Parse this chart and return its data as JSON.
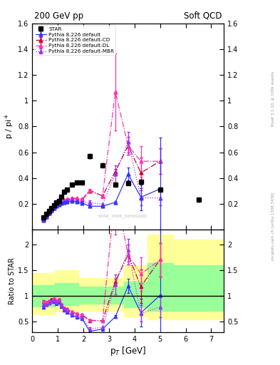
{
  "title_left": "200 GeV pp",
  "title_right": "Soft QCD",
  "ylabel_top": "p / pi$^{+}$",
  "ylabel_bottom": "Ratio to STAR",
  "xlabel": "p$_{T}$ [GeV]",
  "right_label_top": "Rivet 3.1.10, ≥ 100k events",
  "right_label_bottom": "mcplots.cern.ch [arXiv:1306.3436]",
  "watermark": "STAR_2006_S6500200",
  "star_pt": [
    0.45,
    0.55,
    0.65,
    0.75,
    0.85,
    0.95,
    1.05,
    1.15,
    1.25,
    1.35,
    1.55,
    1.75,
    1.95,
    2.25,
    2.75,
    3.25,
    3.75,
    4.25,
    5.0,
    6.5
  ],
  "star_val": [
    0.09,
    0.12,
    0.145,
    0.165,
    0.185,
    0.21,
    0.22,
    0.255,
    0.29,
    0.31,
    0.35,
    0.365,
    0.365,
    0.57,
    0.5,
    0.35,
    0.36,
    0.37,
    0.31,
    0.23
  ],
  "star_err": [
    0.005,
    0.005,
    0.005,
    0.005,
    0.005,
    0.005,
    0.005,
    0.005,
    0.005,
    0.005,
    0.01,
    0.01,
    0.01,
    0.02,
    0.02,
    0.02,
    0.02,
    0.02,
    0.02,
    0.02
  ],
  "default_pt": [
    0.45,
    0.55,
    0.65,
    0.75,
    0.85,
    0.95,
    1.05,
    1.15,
    1.25,
    1.35,
    1.55,
    1.75,
    1.95,
    2.25,
    2.75,
    3.25,
    3.75,
    4.25,
    5.0
  ],
  "default_val": [
    0.07,
    0.1,
    0.125,
    0.148,
    0.165,
    0.18,
    0.195,
    0.205,
    0.21,
    0.215,
    0.22,
    0.215,
    0.205,
    0.18,
    0.18,
    0.21,
    0.43,
    0.25,
    0.315
  ],
  "default_err": [
    0.002,
    0.002,
    0.002,
    0.002,
    0.002,
    0.002,
    0.002,
    0.002,
    0.002,
    0.002,
    0.003,
    0.003,
    0.003,
    0.004,
    0.005,
    0.01,
    0.05,
    0.1,
    0.4
  ],
  "cd_pt": [
    0.45,
    0.55,
    0.65,
    0.75,
    0.85,
    0.95,
    1.05,
    1.15,
    1.25,
    1.35,
    1.55,
    1.75,
    1.95,
    2.25,
    2.75,
    3.25,
    3.75,
    4.25,
    5.0
  ],
  "cd_val": [
    0.08,
    0.105,
    0.13,
    0.155,
    0.175,
    0.19,
    0.205,
    0.215,
    0.225,
    0.23,
    0.24,
    0.24,
    0.23,
    0.3,
    0.26,
    0.45,
    0.65,
    0.44,
    0.53
  ],
  "cd_err": [
    0.003,
    0.003,
    0.003,
    0.003,
    0.003,
    0.003,
    0.003,
    0.003,
    0.003,
    0.003,
    0.004,
    0.004,
    0.005,
    0.01,
    0.01,
    0.02,
    0.07,
    0.12,
    0.1
  ],
  "dl_pt": [
    0.45,
    0.55,
    0.65,
    0.75,
    0.85,
    0.95,
    1.05,
    1.15,
    1.25,
    1.35,
    1.55,
    1.75,
    1.95,
    2.25,
    2.75,
    3.25,
    3.75,
    4.25,
    5.0
  ],
  "dl_val": [
    0.08,
    0.105,
    0.13,
    0.15,
    0.175,
    0.19,
    0.205,
    0.215,
    0.225,
    0.235,
    0.245,
    0.24,
    0.235,
    0.305,
    0.26,
    1.07,
    0.65,
    0.53,
    0.53
  ],
  "dl_err": [
    0.003,
    0.003,
    0.003,
    0.003,
    0.003,
    0.003,
    0.003,
    0.003,
    0.003,
    0.003,
    0.004,
    0.004,
    0.005,
    0.01,
    0.01,
    0.3,
    0.07,
    0.12,
    0.1
  ],
  "mbr_pt": [
    0.45,
    0.55,
    0.65,
    0.75,
    0.85,
    0.95,
    1.05,
    1.15,
    1.25,
    1.35,
    1.55,
    1.75,
    1.95,
    2.25,
    2.75,
    3.25,
    3.75,
    4.25,
    5.0
  ],
  "mbr_val": [
    0.075,
    0.1,
    0.125,
    0.15,
    0.17,
    0.185,
    0.2,
    0.21,
    0.22,
    0.225,
    0.23,
    0.225,
    0.215,
    0.21,
    0.195,
    0.43,
    0.68,
    0.245,
    0.245
  ],
  "mbr_err": [
    0.003,
    0.003,
    0.003,
    0.003,
    0.003,
    0.003,
    0.003,
    0.003,
    0.003,
    0.003,
    0.004,
    0.004,
    0.005,
    0.015,
    0.01,
    0.07,
    0.08,
    0.06,
    0.06
  ],
  "band_x_edges": [
    0.0,
    0.9,
    1.8,
    3.6,
    4.5,
    5.5,
    7.5
  ],
  "yellow_lo": [
    0.65,
    0.7,
    0.72,
    0.6,
    0.55,
    0.55,
    0.55
  ],
  "yellow_hi": [
    1.45,
    1.5,
    1.35,
    1.6,
    2.2,
    2.1,
    2.1
  ],
  "green_lo": [
    0.8,
    0.83,
    0.85,
    0.78,
    0.72,
    0.72,
    0.72
  ],
  "green_hi": [
    1.22,
    1.25,
    1.18,
    1.28,
    1.65,
    1.6,
    1.6
  ],
  "color_default": "#3333ff",
  "color_cd": "#cc0033",
  "color_dl": "#ff33aa",
  "color_mbr": "#9933ff",
  "color_star": "#000000",
  "color_yellow": "#ffff99",
  "color_green": "#99ff99"
}
